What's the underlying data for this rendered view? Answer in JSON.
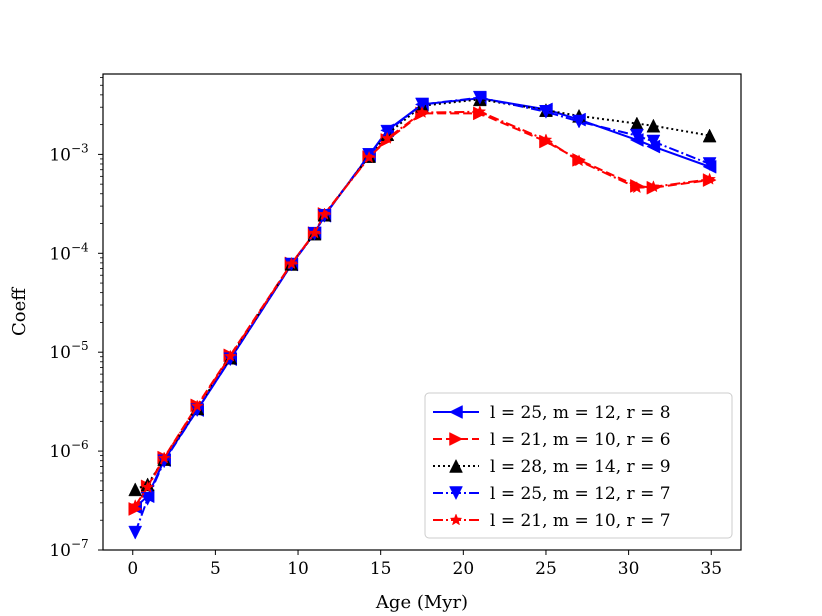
{
  "chart_data": {
    "type": "line",
    "title": "",
    "xlabel": "Age (Myr)",
    "ylabel": "Coeff",
    "yscale": "log",
    "xlim": [
      -1.8,
      36.8
    ],
    "ylim": [
      1e-07,
      0.0065
    ],
    "grid": false,
    "legend_position": "lower-right",
    "x_ticks": [
      0,
      5,
      10,
      15,
      20,
      25,
      30,
      35
    ],
    "y_ticks": [
      {
        "value": 1e-07,
        "base": "10",
        "exp": "−7"
      },
      {
        "value": 1e-06,
        "base": "10",
        "exp": "−6"
      },
      {
        "value": 1e-05,
        "base": "10",
        "exp": "−5"
      },
      {
        "value": 0.0001,
        "base": "10",
        "exp": "−4"
      },
      {
        "value": 0.001,
        "base": "10",
        "exp": "−3"
      }
    ],
    "series": [
      {
        "name": "l = 25, m = 12, r = 8",
        "color": "#0000ff",
        "dash": "solid",
        "marker": "triangle-left",
        "x": [
          0.15,
          0.9,
          1.9,
          3.9,
          5.9,
          9.6,
          11.0,
          11.6,
          14.3,
          15.4,
          17.5,
          21.0,
          25.0,
          27.0,
          30.5,
          31.5,
          34.9
        ],
        "y": [
          2.7e-07,
          3.5e-07,
          8.1e-07,
          2.6e-06,
          8.5e-06,
          7.7e-05,
          0.00016,
          0.00024,
          0.00098,
          0.00175,
          0.0032,
          0.0037,
          0.00285,
          0.00225,
          0.0014,
          0.0012,
          0.00075
        ]
      },
      {
        "name": "l = 21, m = 10, r = 6",
        "color": "#ff0000",
        "dash": "dashed",
        "marker": "triangle-right",
        "x": [
          0.15,
          0.9,
          1.9,
          3.9,
          5.9,
          9.6,
          11.0,
          11.6,
          14.3,
          15.4,
          17.5,
          21.0,
          25.0,
          27.0,
          30.5,
          31.5,
          34.9
        ],
        "y": [
          2.6e-07,
          4.4e-07,
          8.6e-07,
          2.9e-06,
          9.3e-06,
          7.9e-05,
          0.00016,
          0.00025,
          0.00094,
          0.0014,
          0.0026,
          0.0026,
          0.00135,
          0.00088,
          0.00048,
          0.00046,
          0.00055
        ]
      },
      {
        "name": "l = 28, m = 14, r = 9",
        "color": "#000000",
        "dash": "dotted",
        "marker": "triangle-up",
        "x": [
          0.15,
          0.9,
          1.9,
          3.9,
          5.9,
          9.6,
          11.0,
          11.6,
          14.3,
          15.4,
          17.5,
          21.0,
          25.0,
          27.0,
          30.5,
          31.5,
          34.9
        ],
        "y": [
          4.1e-07,
          4.6e-07,
          8.3e-07,
          2.7e-06,
          8.8e-06,
          7.8e-05,
          0.000158,
          0.000245,
          0.00096,
          0.0016,
          0.0031,
          0.0036,
          0.0028,
          0.00245,
          0.00205,
          0.00195,
          0.00155
        ]
      },
      {
        "name": "l = 25, m = 12, r = 7",
        "color": "#0000ff",
        "dash": "dashdot",
        "marker": "triangle-down",
        "x": [
          0.15,
          0.9,
          1.9,
          3.9,
          5.9,
          9.6,
          11.0,
          11.6,
          14.3,
          15.4,
          17.5,
          21.0,
          25.0,
          27.0,
          30.5,
          31.5,
          34.9
        ],
        "y": [
          1.5e-07,
          3.3e-07,
          7.9e-07,
          2.6e-06,
          8.5e-06,
          7.7e-05,
          0.000158,
          0.00024,
          0.00099,
          0.0017,
          0.0032,
          0.00375,
          0.0027,
          0.00215,
          0.00155,
          0.00135,
          0.0008
        ]
      },
      {
        "name": "l = 21, m = 10, r = 7",
        "color": "#ff0000",
        "dash": "dashdot",
        "marker": "star",
        "x": [
          0.15,
          0.9,
          1.9,
          3.9,
          5.9,
          9.6,
          11.0,
          11.6,
          14.3,
          15.4,
          17.5,
          21.0,
          25.0,
          27.0,
          30.5,
          31.5,
          34.9
        ],
        "y": [
          2.8e-07,
          4.3e-07,
          8.5e-07,
          2.85e-06,
          9.1e-06,
          7.85e-05,
          0.00016,
          0.000248,
          0.00093,
          0.00145,
          0.00265,
          0.0027,
          0.0014,
          0.00086,
          0.00046,
          0.00047,
          0.00056
        ]
      }
    ]
  }
}
